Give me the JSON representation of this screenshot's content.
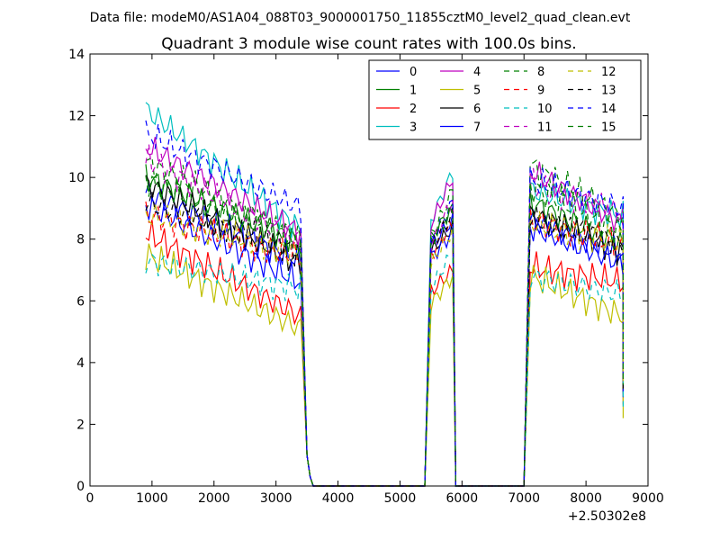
{
  "figure": {
    "suptitle": "Data file: modeM0/AS1A04_088T03_9000001750_11855cztM0_level2_quad_clean.evt"
  },
  "chart_data": {
    "type": "line",
    "title": "Quadrant 3 module wise count rates with 100.0s bins.",
    "xlabel": "",
    "ylabel": "",
    "x_offset_label": "+2.50302e8",
    "xlim": [
      0,
      9000
    ],
    "ylim": [
      0,
      14
    ],
    "xticks": [
      0,
      1000,
      2000,
      3000,
      4000,
      5000,
      6000,
      7000,
      8000,
      9000
    ],
    "yticks": [
      0,
      2,
      4,
      6,
      8,
      10,
      12,
      14
    ],
    "grid": false,
    "legend_position": "top-right",
    "legend_columns": 4,
    "segments": [
      {
        "x_start": 900,
        "x_end": 3400,
        "step": 50
      },
      {
        "x_start": 5500,
        "x_end": 5850,
        "step": 50
      },
      {
        "x_start": 7100,
        "x_end": 8600,
        "step": 50
      }
    ],
    "gap_x": [
      3500,
      3550,
      3600,
      3650,
      3700,
      3750,
      3800,
      4000,
      4500,
      5000,
      5400,
      5900,
      6000,
      6500,
      7000
    ],
    "gap_y": [
      1.0,
      0.3,
      0.0,
      0.0,
      0.0,
      0.0,
      0.0,
      0.0,
      0.0,
      0.0,
      0.0,
      0.0,
      0.0,
      0.0,
      0.0
    ],
    "series": [
      {
        "name": "0",
        "color": "#0000ff",
        "dash": "solid",
        "segments": [
          [
            9.5,
            7.3
          ],
          [
            7.8,
            8.6
          ],
          [
            8.6,
            7.5
          ]
        ]
      },
      {
        "name": "1",
        "color": "#008000",
        "dash": "solid",
        "segments": [
          [
            10.0,
            7.9
          ],
          [
            8.1,
            9.0
          ],
          [
            9.2,
            7.8
          ]
        ]
      },
      {
        "name": "2",
        "color": "#ff0000",
        "dash": "solid",
        "segments": [
          [
            8.2,
            5.5
          ],
          [
            6.3,
            7.0
          ],
          [
            7.1,
            6.6
          ]
        ]
      },
      {
        "name": "3",
        "color": "#00bfbf",
        "dash": "solid",
        "segments": [
          [
            12.2,
            8.3
          ],
          [
            8.6,
            10.2
          ],
          [
            9.6,
            8.7
          ]
        ]
      },
      {
        "name": "4",
        "color": "#bf00bf",
        "dash": "solid",
        "segments": [
          [
            11.0,
            8.2
          ],
          [
            8.5,
            10.0
          ],
          [
            10.2,
            8.5
          ]
        ]
      },
      {
        "name": "5",
        "color": "#bfbf00",
        "dash": "solid",
        "segments": [
          [
            7.5,
            5.1
          ],
          [
            5.9,
            6.8
          ],
          [
            6.8,
            5.5
          ]
        ]
      },
      {
        "name": "6",
        "color": "#000000",
        "dash": "solid",
        "segments": [
          [
            9.8,
            7.2
          ],
          [
            7.6,
            8.4
          ],
          [
            8.8,
            7.6
          ]
        ]
      },
      {
        "name": "7",
        "color": "#0000ff",
        "dash": "solid",
        "segments": [
          [
            9.1,
            6.6
          ],
          [
            7.4,
            8.2
          ],
          [
            8.4,
            7.2
          ]
        ]
      },
      {
        "name": "8",
        "color": "#008000",
        "dash": "dashed",
        "segments": [
          [
            10.5,
            8.0
          ],
          [
            8.0,
            9.6
          ],
          [
            10.4,
            8.7
          ]
        ]
      },
      {
        "name": "9",
        "color": "#ff0000",
        "dash": "dashed",
        "segments": [
          [
            8.8,
            7.4
          ],
          [
            7.5,
            8.5
          ],
          [
            8.6,
            7.8
          ]
        ]
      },
      {
        "name": "10",
        "color": "#00bfbf",
        "dash": "dashed",
        "segments": [
          [
            7.3,
            6.4
          ],
          [
            6.4,
            7.6
          ],
          [
            6.8,
            6.2
          ]
        ]
      },
      {
        "name": "11",
        "color": "#bf00bf",
        "dash": "dashed",
        "segments": [
          [
            10.6,
            7.9
          ],
          [
            7.8,
            9.3
          ],
          [
            9.8,
            8.8
          ]
        ]
      },
      {
        "name": "12",
        "color": "#bfbf00",
        "dash": "dashed",
        "segments": [
          [
            8.8,
            7.5
          ],
          [
            7.2,
            8.3
          ],
          [
            8.5,
            7.9
          ]
        ]
      },
      {
        "name": "13",
        "color": "#000000",
        "dash": "dashed",
        "segments": [
          [
            9.2,
            7.6
          ],
          [
            7.8,
            8.8
          ],
          [
            8.7,
            7.9
          ]
        ]
      },
      {
        "name": "14",
        "color": "#0000ff",
        "dash": "dashed",
        "segments": [
          [
            11.4,
            9.0
          ],
          [
            7.9,
            9.2
          ],
          [
            9.9,
            9.0
          ]
        ]
      },
      {
        "name": "15",
        "color": "#008000",
        "dash": "dashed",
        "segments": [
          [
            9.9,
            7.9
          ],
          [
            7.9,
            9.0
          ],
          [
            9.7,
            8.2
          ]
        ]
      }
    ]
  }
}
